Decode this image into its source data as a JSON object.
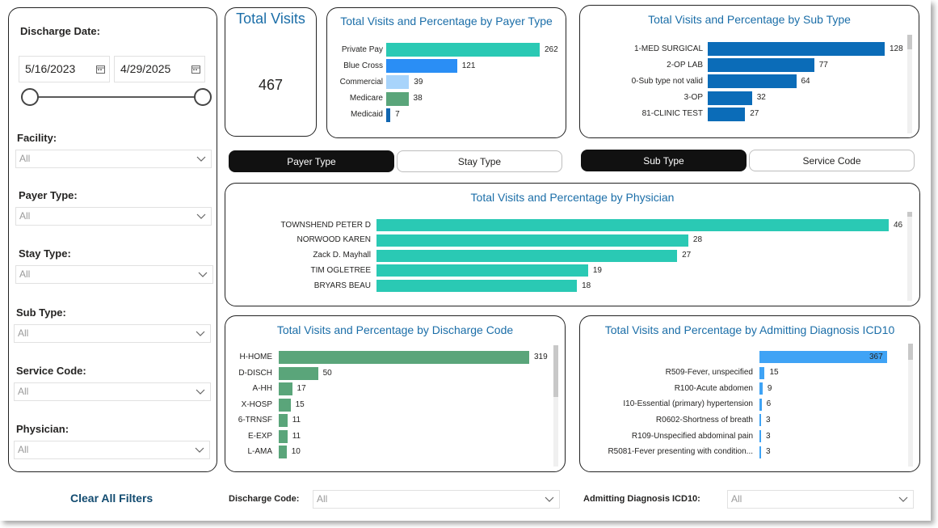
{
  "filters": {
    "discharge_date_label": "Discharge Date:",
    "date_start": "5/16/2023",
    "date_end": "4/29/2025",
    "facility_label": "Facility:",
    "facility_value": "All",
    "payer_label": "Payer Type:",
    "payer_value": "All",
    "stay_label": "Stay Type:",
    "stay_value": "All",
    "subtype_label": "Sub Type:",
    "subtype_value": "All",
    "service_label": "Service Code:",
    "service_value": "All",
    "physician_label": "Physician:",
    "physician_value": "All"
  },
  "total_visits": {
    "title": "Total Visits",
    "value": "467"
  },
  "payer_chart": {
    "title": "Total Visits and Percentage by Payer Type",
    "max": 262,
    "rows": [
      {
        "label": "Private Pay",
        "value": 262,
        "color": "#2ac9b4"
      },
      {
        "label": "Blue Cross",
        "value": 121,
        "color": "#2a8ef5"
      },
      {
        "label": "Commercial",
        "value": 39,
        "color": "#a8d4fb"
      },
      {
        "label": "Medicare",
        "value": 38,
        "color": "#5aa57a"
      },
      {
        "label": "Medicaid",
        "value": 7,
        "color": "#1166b0"
      }
    ]
  },
  "subtype_chart": {
    "title": "Total Visits and Percentage by Sub Type",
    "max": 128,
    "rows": [
      {
        "label": "1-MED SURGICAL",
        "value": 128,
        "color": "#0b6cb8"
      },
      {
        "label": "2-OP LAB",
        "value": 77,
        "color": "#0b6cb8"
      },
      {
        "label": "0-Sub type not valid",
        "value": 64,
        "color": "#0b6cb8"
      },
      {
        "label": "3-OP",
        "value": 32,
        "color": "#0b6cb8"
      },
      {
        "label": "81-CLINIC TEST",
        "value": 27,
        "color": "#0b6cb8"
      }
    ]
  },
  "toggles": {
    "payer_type": "Payer Type",
    "stay_type": "Stay Type",
    "sub_type": "Sub Type",
    "service_code": "Service Code"
  },
  "physician_chart": {
    "title": "Total Visits and Percentage by Physician",
    "max": 46,
    "rows": [
      {
        "label": "TOWNSHEND PETER D",
        "value": 46,
        "color": "#2ac9b4"
      },
      {
        "label": "NORWOOD KAREN",
        "value": 28,
        "color": "#2ac9b4"
      },
      {
        "label": "Zack D. Mayhall",
        "value": 27,
        "color": "#2ac9b4"
      },
      {
        "label": "TIM OGLETREE",
        "value": 19,
        "color": "#2ac9b4"
      },
      {
        "label": "BRYARS BEAU",
        "value": 18,
        "color": "#2ac9b4"
      }
    ]
  },
  "discharge_chart": {
    "title": "Total Visits and Percentage by Discharge Code",
    "max": 319,
    "rows": [
      {
        "label": "H-HOME",
        "value": 319,
        "color": "#5aa57a"
      },
      {
        "label": "D-DISCH",
        "value": 50,
        "color": "#5aa57a"
      },
      {
        "label": "A-HH",
        "value": 17,
        "color": "#5aa57a"
      },
      {
        "label": "X-HOSP",
        "value": 15,
        "color": "#5aa57a"
      },
      {
        "label": "6-TRNSF",
        "value": 11,
        "color": "#5aa57a"
      },
      {
        "label": "E-EXP",
        "value": 11,
        "color": "#5aa57a"
      },
      {
        "label": "L-AMA",
        "value": 10,
        "color": "#5aa57a"
      }
    ]
  },
  "diagnosis_chart": {
    "title": "Total Visits and Percentage by Admitting Diagnosis ICD10",
    "max": 367,
    "rows": [
      {
        "label": "",
        "value": 367,
        "color": "#3fa3f5"
      },
      {
        "label": "R509-Fever, unspecified",
        "value": 15,
        "color": "#3fa3f5"
      },
      {
        "label": "R100-Acute abdomen",
        "value": 9,
        "color": "#3fa3f5"
      },
      {
        "label": "I10-Essential (primary) hypertension",
        "value": 6,
        "color": "#3fa3f5"
      },
      {
        "label": "R0602-Shortness of breath",
        "value": 3,
        "color": "#3fa3f5"
      },
      {
        "label": "R109-Unspecified abdominal pain",
        "value": 3,
        "color": "#3fa3f5"
      },
      {
        "label": "R5081-Fever presenting with condition...",
        "value": 3,
        "color": "#3fa3f5"
      }
    ]
  },
  "bottom": {
    "clear_filters": "Clear All Filters",
    "discharge_code_label": "Discharge Code:",
    "discharge_code_value": "All",
    "admitting_label": "Admitting Diagnosis ICD10:",
    "admitting_value": "All"
  }
}
